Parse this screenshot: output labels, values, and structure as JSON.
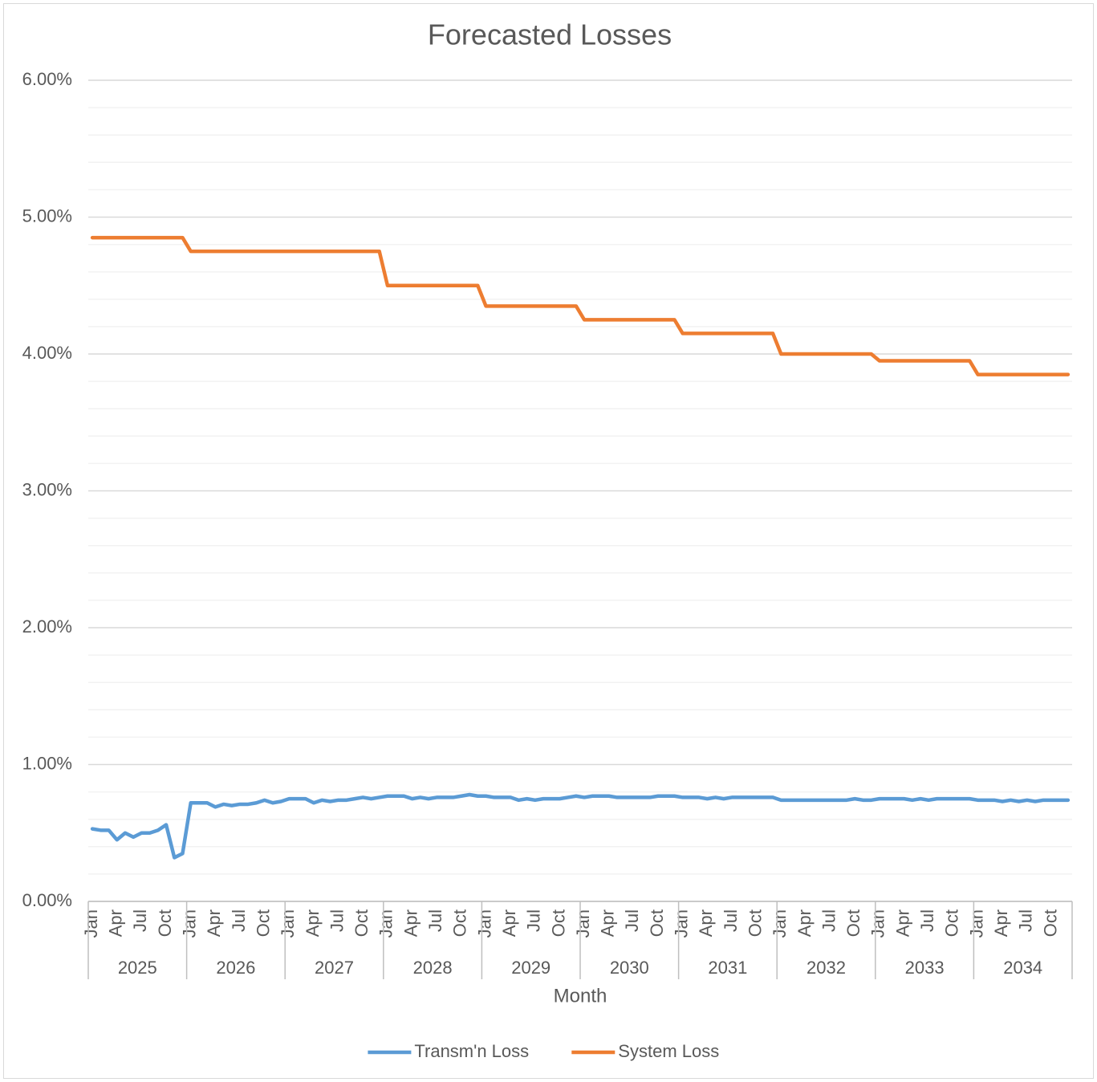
{
  "chart_data": {
    "type": "line",
    "title": "Forecasted Losses",
    "x_label": "Month",
    "categories": [
      "Jan",
      null,
      null,
      "Apr",
      null,
      null,
      "Jul",
      null,
      null,
      "Oct",
      null,
      null,
      "Jan",
      null,
      null,
      "Apr",
      null,
      null,
      "Jul",
      null,
      null,
      "Oct",
      null,
      null,
      "Jan",
      null,
      null,
      "Apr",
      null,
      null,
      "Jul",
      null,
      null,
      "Oct",
      null,
      null,
      "Jan",
      null,
      null,
      "Apr",
      null,
      null,
      "Jul",
      null,
      null,
      "Oct",
      null,
      null,
      "Jan",
      null,
      null,
      "Apr",
      null,
      null,
      "Jul",
      null,
      null,
      "Oct",
      null,
      null,
      "Jan",
      null,
      null,
      "Apr",
      null,
      null,
      "Jul",
      null,
      null,
      "Oct",
      null,
      null,
      "Jan",
      null,
      null,
      "Apr",
      null,
      null,
      "Jul",
      null,
      null,
      "Oct",
      null,
      null,
      "Jan",
      null,
      null,
      "Apr",
      null,
      null,
      "Jul",
      null,
      null,
      "Oct",
      null,
      null,
      "Jan",
      null,
      null,
      "Apr",
      null,
      null,
      "Jul",
      null,
      null,
      "Oct",
      null,
      null,
      "Jan",
      null,
      null,
      "Apr",
      null,
      null,
      "Jul",
      null,
      null,
      "Oct",
      null,
      null
    ],
    "category_groups": [
      "2025",
      "2026",
      "2027",
      "2028",
      "2029",
      "2030",
      "2031",
      "2032",
      "2033",
      "2034"
    ],
    "series": [
      {
        "name": "Transm'n Loss",
        "color": "#5b9bd5",
        "values": [
          0.53,
          0.52,
          0.52,
          0.45,
          0.5,
          0.47,
          0.5,
          0.5,
          0.52,
          0.56,
          0.32,
          0.35,
          0.72,
          0.72,
          0.72,
          0.69,
          0.71,
          0.7,
          0.71,
          0.71,
          0.72,
          0.74,
          0.72,
          0.73,
          0.75,
          0.75,
          0.75,
          0.72,
          0.74,
          0.73,
          0.74,
          0.74,
          0.75,
          0.76,
          0.75,
          0.76,
          0.77,
          0.77,
          0.77,
          0.75,
          0.76,
          0.75,
          0.76,
          0.76,
          0.76,
          0.77,
          0.78,
          0.77,
          0.77,
          0.76,
          0.76,
          0.76,
          0.74,
          0.75,
          0.74,
          0.75,
          0.75,
          0.75,
          0.76,
          0.77,
          0.76,
          0.77,
          0.77,
          0.77,
          0.76,
          0.76,
          0.76,
          0.76,
          0.76,
          0.77,
          0.77,
          0.77,
          0.76,
          0.76,
          0.76,
          0.75,
          0.76,
          0.75,
          0.76,
          0.76,
          0.76,
          0.76,
          0.76,
          0.76,
          0.74,
          0.74,
          0.74,
          0.74,
          0.74,
          0.74,
          0.74,
          0.74,
          0.74,
          0.75,
          0.74,
          0.74,
          0.75,
          0.75,
          0.75,
          0.75,
          0.74,
          0.75,
          0.74,
          0.75,
          0.75,
          0.75,
          0.75,
          0.75,
          0.74,
          0.74,
          0.74,
          0.73,
          0.74,
          0.73,
          0.74,
          0.73,
          0.74,
          0.74,
          0.74,
          0.74
        ]
      },
      {
        "name": "System Loss",
        "color": "#ed7d31",
        "values": [
          4.85,
          4.85,
          4.85,
          4.85,
          4.85,
          4.85,
          4.85,
          4.85,
          4.85,
          4.85,
          4.85,
          4.85,
          4.75,
          4.75,
          4.75,
          4.75,
          4.75,
          4.75,
          4.75,
          4.75,
          4.75,
          4.75,
          4.75,
          4.75,
          4.75,
          4.75,
          4.75,
          4.75,
          4.75,
          4.75,
          4.75,
          4.75,
          4.75,
          4.75,
          4.75,
          4.75,
          4.5,
          4.5,
          4.5,
          4.5,
          4.5,
          4.5,
          4.5,
          4.5,
          4.5,
          4.5,
          4.5,
          4.5,
          4.35,
          4.35,
          4.35,
          4.35,
          4.35,
          4.35,
          4.35,
          4.35,
          4.35,
          4.35,
          4.35,
          4.35,
          4.25,
          4.25,
          4.25,
          4.25,
          4.25,
          4.25,
          4.25,
          4.25,
          4.25,
          4.25,
          4.25,
          4.25,
          4.15,
          4.15,
          4.15,
          4.15,
          4.15,
          4.15,
          4.15,
          4.15,
          4.15,
          4.15,
          4.15,
          4.15,
          4.0,
          4.0,
          4.0,
          4.0,
          4.0,
          4.0,
          4.0,
          4.0,
          4.0,
          4.0,
          4.0,
          4.0,
          3.95,
          3.95,
          3.95,
          3.95,
          3.95,
          3.95,
          3.95,
          3.95,
          3.95,
          3.95,
          3.95,
          3.95,
          3.85,
          3.85,
          3.85,
          3.85,
          3.85,
          3.85,
          3.85,
          3.85,
          3.85,
          3.85,
          3.85,
          3.85
        ]
      }
    ],
    "ylim": [
      0,
      6
    ],
    "yticks": [
      {
        "value": 0,
        "label": "0.00%"
      },
      {
        "value": 1,
        "label": "1.00%"
      },
      {
        "value": 2,
        "label": "2.00%"
      },
      {
        "value": 3,
        "label": "3.00%"
      },
      {
        "value": 4,
        "label": "4.00%"
      },
      {
        "value": 5,
        "label": "5.00%"
      },
      {
        "value": 6,
        "label": "6.00%"
      }
    ],
    "minor_yticks": [
      0.2,
      0.4,
      0.6,
      0.8,
      1.2,
      1.4,
      1.6,
      1.8,
      2.2,
      2.4,
      2.6,
      2.8,
      3.2,
      3.4,
      3.6,
      3.8,
      4.2,
      4.4,
      4.6,
      4.8,
      5.2,
      5.4,
      5.6,
      5.8
    ],
    "grid": true,
    "legend": "bottom"
  }
}
